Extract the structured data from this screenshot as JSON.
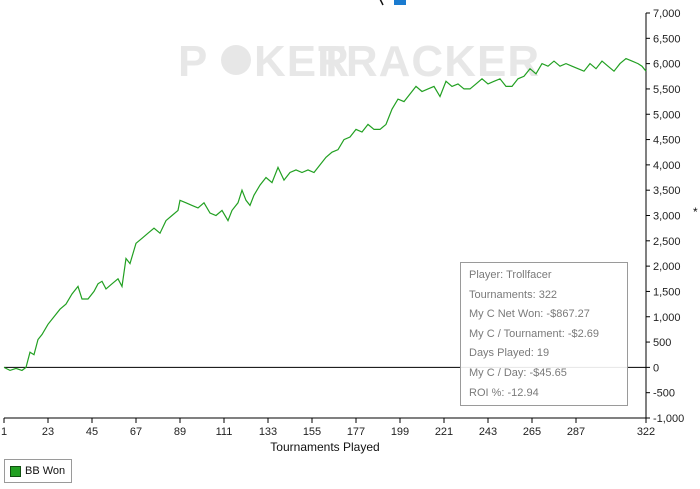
{
  "watermark": {
    "part1": "P",
    "part2": "KER",
    "part3": "TRACKER"
  },
  "chart_data": {
    "type": "line",
    "xlabel": "Tournaments Played",
    "ylabel": "",
    "xlim": [
      1,
      322
    ],
    "ylim": [
      -1000,
      7000
    ],
    "x_ticks": [
      1,
      23,
      45,
      67,
      89,
      111,
      133,
      155,
      177,
      199,
      221,
      243,
      265,
      287,
      322
    ],
    "y_ticks": [
      -1000,
      -500,
      0,
      500,
      1000,
      1500,
      2000,
      2500,
      3000,
      3500,
      4000,
      4500,
      5000,
      5500,
      6000,
      6500,
      7000
    ],
    "y_tick_labels": [
      "-1,000",
      "-500",
      "0",
      "500",
      "1,000",
      "1,500",
      "2,000",
      "2,500",
      "3,000",
      "3,500",
      "4,000",
      "4,500",
      "5,000",
      "5,500",
      "6,000",
      "6,500",
      "7,000"
    ],
    "legend_position": "bottom-left",
    "series": [
      {
        "name": "BB Won",
        "color": "#22a022",
        "points": [
          [
            1,
            0
          ],
          [
            4,
            -60
          ],
          [
            7,
            -20
          ],
          [
            10,
            -60
          ],
          [
            12,
            0
          ],
          [
            14,
            300
          ],
          [
            16,
            250
          ],
          [
            18,
            550
          ],
          [
            20,
            650
          ],
          [
            23,
            850
          ],
          [
            26,
            1000
          ],
          [
            29,
            1150
          ],
          [
            32,
            1250
          ],
          [
            35,
            1450
          ],
          [
            38,
            1600
          ],
          [
            40,
            1350
          ],
          [
            43,
            1350
          ],
          [
            46,
            1500
          ],
          [
            48,
            1650
          ],
          [
            50,
            1700
          ],
          [
            52,
            1550
          ],
          [
            55,
            1650
          ],
          [
            58,
            1750
          ],
          [
            60,
            1600
          ],
          [
            62,
            2150
          ],
          [
            64,
            2050
          ],
          [
            67,
            2450
          ],
          [
            70,
            2550
          ],
          [
            73,
            2650
          ],
          [
            76,
            2750
          ],
          [
            79,
            2650
          ],
          [
            82,
            2900
          ],
          [
            85,
            3000
          ],
          [
            88,
            3100
          ],
          [
            89,
            3300
          ],
          [
            92,
            3250
          ],
          [
            95,
            3200
          ],
          [
            98,
            3150
          ],
          [
            101,
            3250
          ],
          [
            104,
            3050
          ],
          [
            107,
            3000
          ],
          [
            110,
            3100
          ],
          [
            113,
            2900
          ],
          [
            115,
            3100
          ],
          [
            118,
            3250
          ],
          [
            120,
            3500
          ],
          [
            122,
            3300
          ],
          [
            124,
            3200
          ],
          [
            126,
            3400
          ],
          [
            129,
            3600
          ],
          [
            132,
            3750
          ],
          [
            135,
            3650
          ],
          [
            138,
            3950
          ],
          [
            141,
            3700
          ],
          [
            144,
            3850
          ],
          [
            147,
            3900
          ],
          [
            150,
            3850
          ],
          [
            153,
            3900
          ],
          [
            156,
            3850
          ],
          [
            159,
            4000
          ],
          [
            162,
            4150
          ],
          [
            165,
            4250
          ],
          [
            168,
            4300
          ],
          [
            171,
            4500
          ],
          [
            174,
            4550
          ],
          [
            177,
            4700
          ],
          [
            180,
            4650
          ],
          [
            183,
            4800
          ],
          [
            186,
            4700
          ],
          [
            189,
            4700
          ],
          [
            192,
            4800
          ],
          [
            195,
            5100
          ],
          [
            198,
            5300
          ],
          [
            201,
            5250
          ],
          [
            204,
            5400
          ],
          [
            207,
            5550
          ],
          [
            210,
            5450
          ],
          [
            213,
            5500
          ],
          [
            216,
            5550
          ],
          [
            219,
            5350
          ],
          [
            222,
            5650
          ],
          [
            225,
            5550
          ],
          [
            228,
            5600
          ],
          [
            231,
            5500
          ],
          [
            234,
            5500
          ],
          [
            237,
            5600
          ],
          [
            240,
            5700
          ],
          [
            243,
            5600
          ],
          [
            246,
            5650
          ],
          [
            249,
            5700
          ],
          [
            252,
            5550
          ],
          [
            255,
            5550
          ],
          [
            258,
            5700
          ],
          [
            261,
            5750
          ],
          [
            264,
            5900
          ],
          [
            267,
            5800
          ],
          [
            270,
            6000
          ],
          [
            273,
            5950
          ],
          [
            276,
            6050
          ],
          [
            279,
            5950
          ],
          [
            282,
            6000
          ],
          [
            285,
            5950
          ],
          [
            288,
            5900
          ],
          [
            291,
            5850
          ],
          [
            294,
            6000
          ],
          [
            297,
            5900
          ],
          [
            300,
            6050
          ],
          [
            303,
            5950
          ],
          [
            306,
            5850
          ],
          [
            309,
            6000
          ],
          [
            312,
            6100
          ],
          [
            315,
            6050
          ],
          [
            318,
            6000
          ],
          [
            320,
            5950
          ],
          [
            322,
            5850
          ]
        ]
      }
    ]
  },
  "stats": {
    "lines": [
      "Player: Trollfacer",
      "Tournaments: 322",
      "My C Net Won: -$867.27",
      "My C / Tournament: -$2.69",
      "Days Played: 19",
      "My C / Day: -$45.65",
      "ROI %: -12.94"
    ]
  },
  "legend": {
    "label": "BB Won",
    "color": "#22a022"
  },
  "edge_marker": "*"
}
